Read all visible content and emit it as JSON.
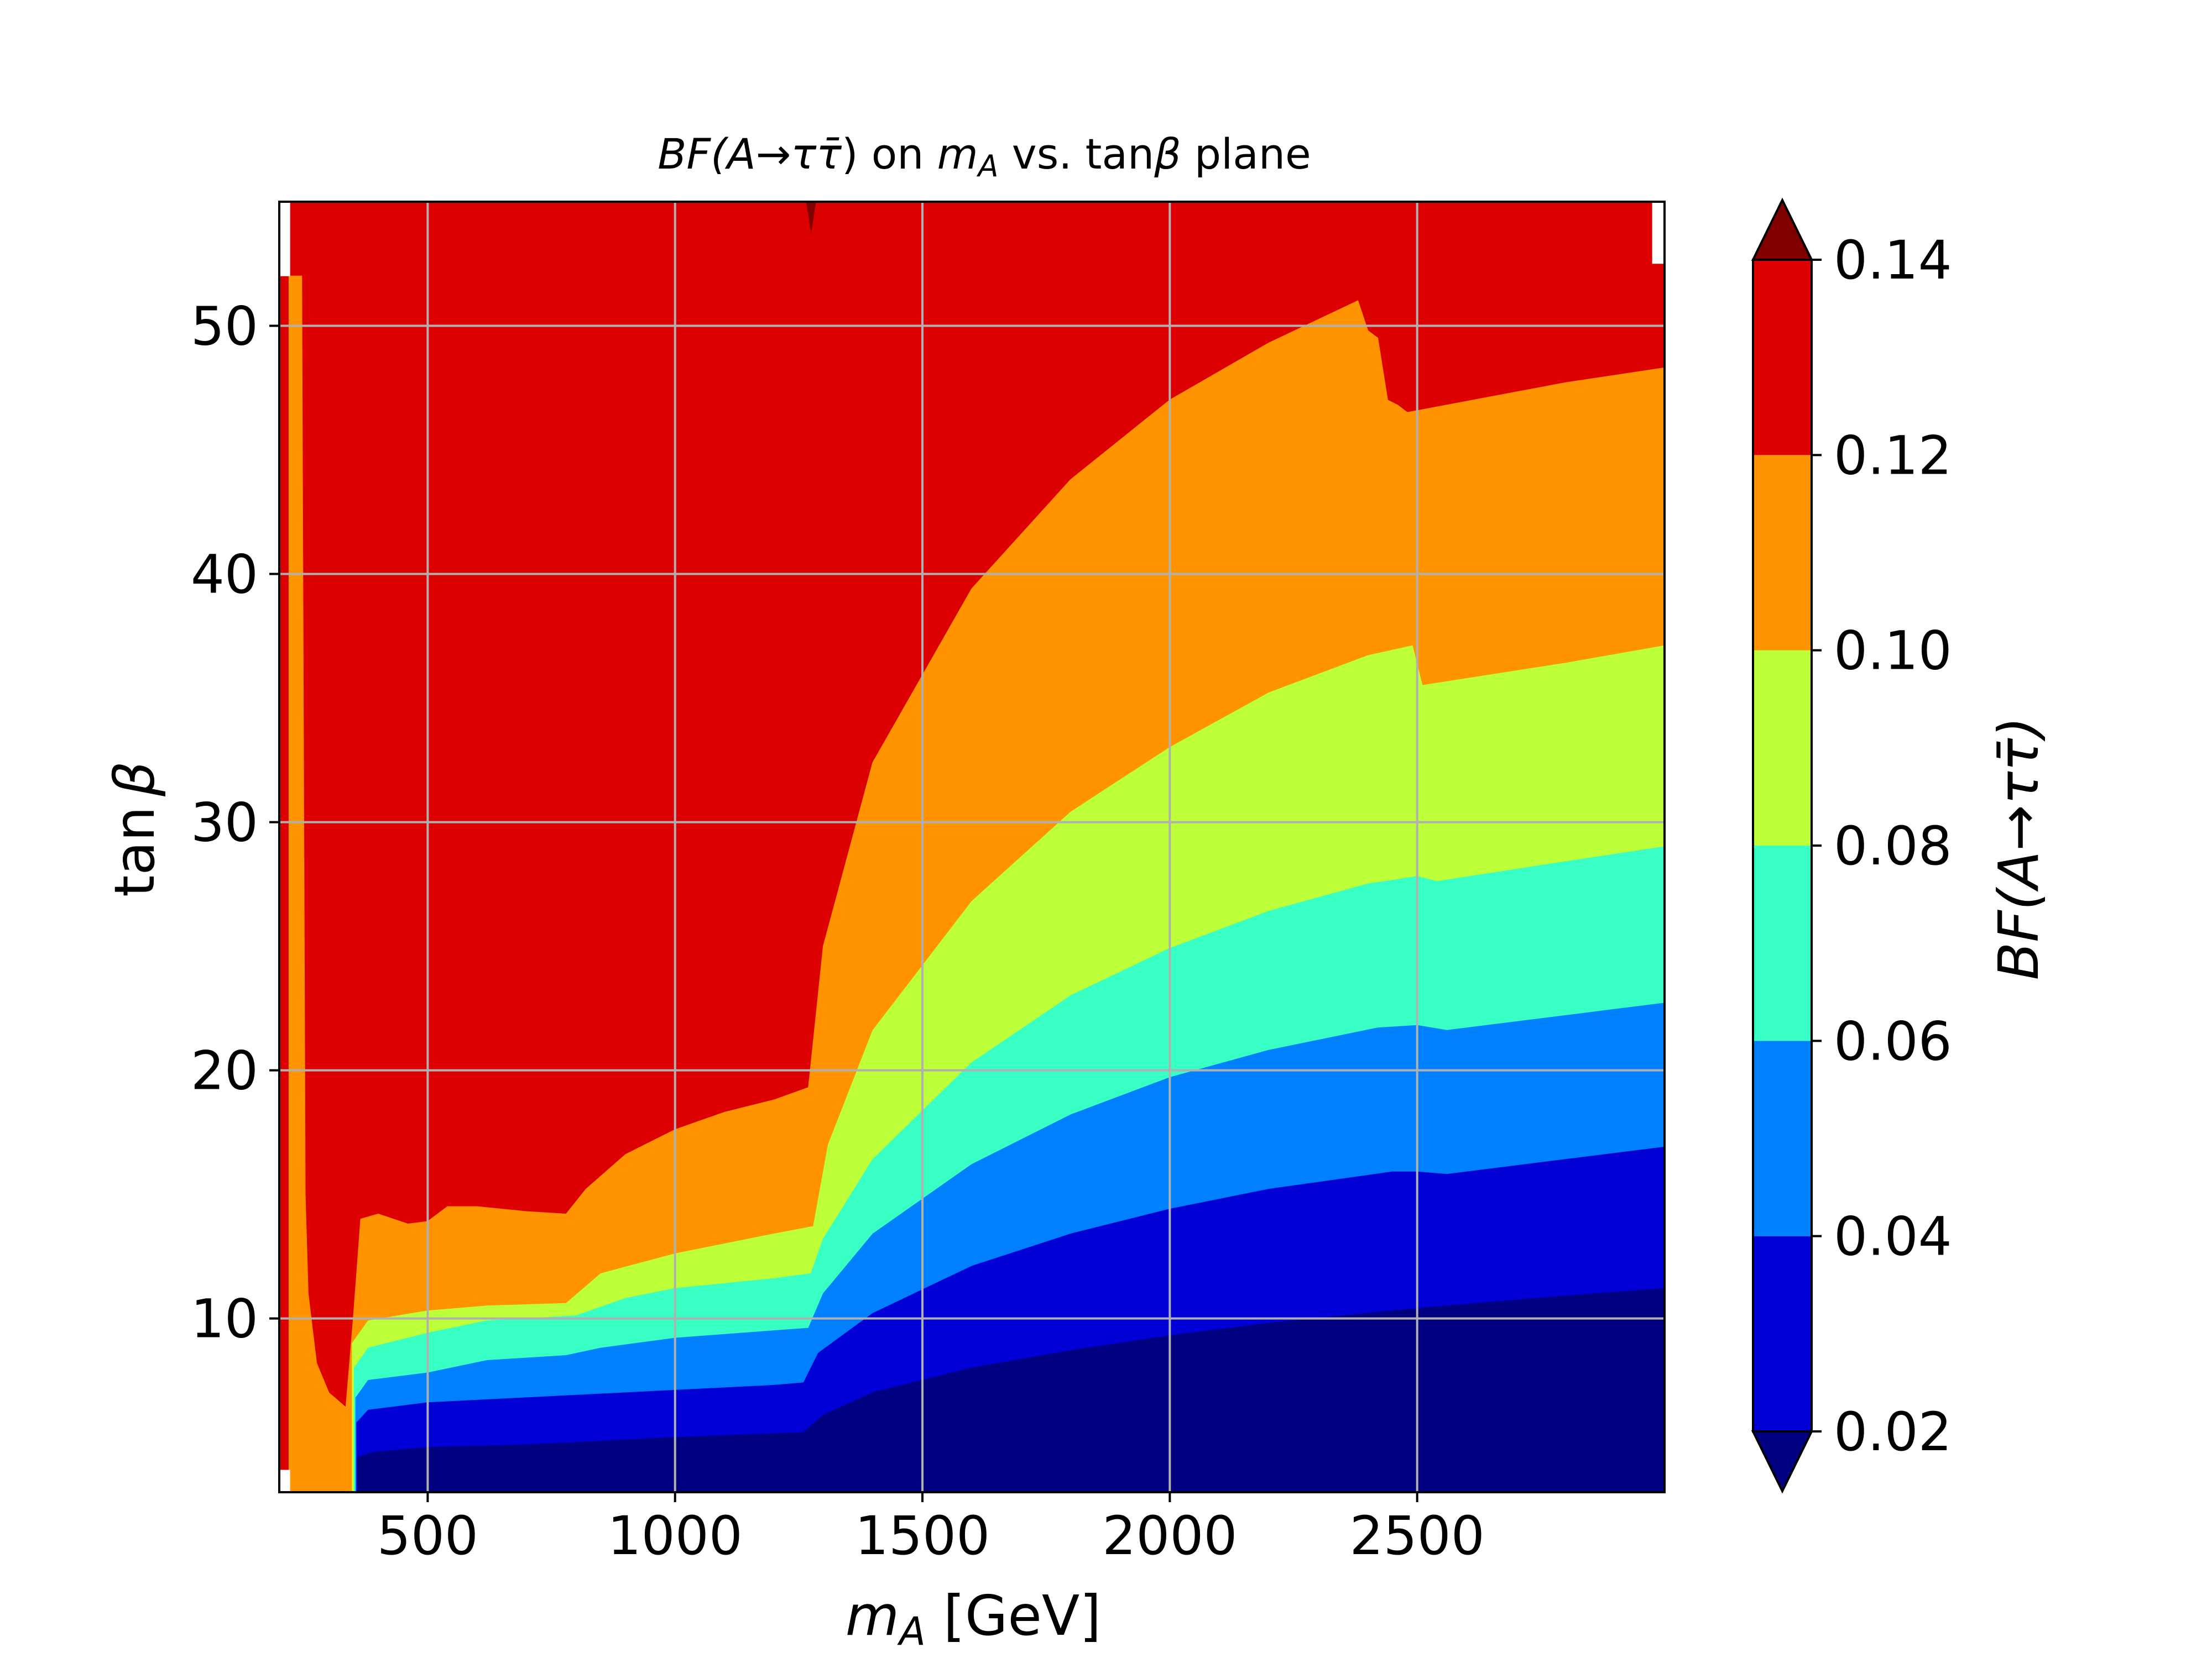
{
  "chart_data": {
    "type": "heatmap",
    "subtype": "filled-contour",
    "title": {
      "parts": [
        "BF(",
        "A",
        "→",
        "τ",
        "τ̄",
        ") on ",
        "m",
        "A",
        " vs. tan",
        "β",
        " plane"
      ]
    },
    "xlabel": {
      "base": "m",
      "sub": "A",
      "rest": " [GeV]"
    },
    "ylabel": {
      "text": "tan",
      "greek": "β"
    },
    "colorbar_label": "BF(A→ττ̄)",
    "xlim": [
      200,
      3000
    ],
    "ylim": [
      3,
      55
    ],
    "xticks": [
      500,
      1000,
      1500,
      2000,
      2500
    ],
    "xtick_labels": [
      "500",
      "1000",
      "1500",
      "2000",
      "2500"
    ],
    "yticks": [
      10,
      20,
      30,
      40,
      50
    ],
    "ytick_labels": [
      "10",
      "20",
      "30",
      "40",
      "50"
    ],
    "grid": true,
    "colorbar": {
      "levels": [
        0.02,
        0.04,
        0.06,
        0.08,
        0.1,
        0.12,
        0.14
      ],
      "tick_labels": [
        "0.02",
        "0.04",
        "0.06",
        "0.08",
        "0.10",
        "0.12",
        "0.14"
      ],
      "colors": [
        "#0000d6",
        "#0080ff",
        "#38ffc4",
        "#bdff38",
        "#ff9400",
        "#dc0000"
      ],
      "extend_low_color": "#000080",
      "extend_high_color": "#800000",
      "extend": "both"
    },
    "bands": [
      {
        "range": "<0.02",
        "color": "#000080",
        "lower": "bottom",
        "upper": [
          [
            359,
            4.4
          ],
          [
            390,
            4.6
          ],
          [
            500,
            4.8
          ],
          [
            600,
            4.85
          ],
          [
            700,
            4.9
          ],
          [
            800,
            5.0
          ],
          [
            1000,
            5.2
          ],
          [
            1200,
            5.35
          ],
          [
            1260,
            5.4
          ],
          [
            1300,
            6.1
          ],
          [
            1400,
            7.0
          ],
          [
            1600,
            8.0
          ],
          [
            1800,
            8.7
          ],
          [
            2000,
            9.3
          ],
          [
            2200,
            9.8
          ],
          [
            2500,
            10.4
          ],
          [
            2800,
            10.9
          ],
          [
            3000,
            11.2
          ]
        ]
      },
      {
        "range": "0.02–0.04",
        "color": "#0000d6",
        "lower": "prev",
        "upper": [
          [
            357,
            5.8
          ],
          [
            380,
            6.3
          ],
          [
            500,
            6.6
          ],
          [
            700,
            6.8
          ],
          [
            800,
            6.9
          ],
          [
            1000,
            7.1
          ],
          [
            1200,
            7.3
          ],
          [
            1260,
            7.4
          ],
          [
            1290,
            8.6
          ],
          [
            1400,
            10.2
          ],
          [
            1600,
            12.1
          ],
          [
            1800,
            13.4
          ],
          [
            2000,
            14.4
          ],
          [
            2200,
            15.2
          ],
          [
            2450,
            15.9
          ],
          [
            2500,
            15.9
          ],
          [
            2560,
            15.8
          ],
          [
            2800,
            16.4
          ],
          [
            3000,
            16.9
          ]
        ]
      },
      {
        "range": "0.04–0.06",
        "color": "#0080ff",
        "lower": "prev",
        "upper": [
          [
            355,
            6.8
          ],
          [
            380,
            7.5
          ],
          [
            500,
            7.8
          ],
          [
            620,
            8.3
          ],
          [
            780,
            8.5
          ],
          [
            850,
            8.8
          ],
          [
            1000,
            9.2
          ],
          [
            1200,
            9.5
          ],
          [
            1270,
            9.6
          ],
          [
            1300,
            11.0
          ],
          [
            1400,
            13.4
          ],
          [
            1600,
            16.2
          ],
          [
            1800,
            18.2
          ],
          [
            2000,
            19.7
          ],
          [
            2200,
            20.8
          ],
          [
            2420,
            21.7
          ],
          [
            2500,
            21.8
          ],
          [
            2560,
            21.6
          ],
          [
            2800,
            22.2
          ],
          [
            3000,
            22.7
          ]
        ]
      },
      {
        "range": "0.06–0.08",
        "color": "#38ffc4",
        "lower": "prev",
        "upper": [
          [
            352,
            8.0
          ],
          [
            380,
            8.8
          ],
          [
            500,
            9.4
          ],
          [
            620,
            9.9
          ],
          [
            800,
            10.1
          ],
          [
            900,
            10.8
          ],
          [
            1000,
            11.2
          ],
          [
            1200,
            11.6
          ],
          [
            1275,
            11.8
          ],
          [
            1300,
            13.2
          ],
          [
            1400,
            16.4
          ],
          [
            1600,
            20.3
          ],
          [
            1800,
            23.0
          ],
          [
            2000,
            24.9
          ],
          [
            2200,
            26.4
          ],
          [
            2400,
            27.5
          ],
          [
            2500,
            27.8
          ],
          [
            2540,
            27.6
          ],
          [
            2800,
            28.4
          ],
          [
            3000,
            29.0
          ]
        ]
      },
      {
        "range": "0.08–0.10",
        "color": "#bdff38",
        "lower": "prev",
        "upper": [
          [
            348,
            9.0
          ],
          [
            380,
            9.9
          ],
          [
            500,
            10.3
          ],
          [
            620,
            10.5
          ],
          [
            780,
            10.6
          ],
          [
            850,
            11.8
          ],
          [
            1000,
            12.6
          ],
          [
            1200,
            13.4
          ],
          [
            1280,
            13.7
          ],
          [
            1310,
            17.0
          ],
          [
            1400,
            21.6
          ],
          [
            1600,
            26.8
          ],
          [
            1800,
            30.4
          ],
          [
            2000,
            33.0
          ],
          [
            2200,
            35.2
          ],
          [
            2400,
            36.7
          ],
          [
            2490,
            37.1
          ],
          [
            2510,
            35.5
          ],
          [
            2800,
            36.4
          ],
          [
            3000,
            37.1
          ]
        ]
      },
      {
        "range": "0.10–0.12",
        "color": "#ff9400",
        "lower": "prev",
        "upper": [
          [
            220,
            52.0
          ],
          [
            245,
            52.0
          ],
          [
            252,
            15.0
          ],
          [
            258,
            11.0
          ],
          [
            275,
            8.2
          ],
          [
            300,
            7.0
          ],
          [
            335,
            6.4
          ],
          [
            350,
            10.0
          ],
          [
            365,
            14.0
          ],
          [
            400,
            14.2
          ],
          [
            460,
            13.8
          ],
          [
            500,
            13.9
          ],
          [
            540,
            14.5
          ],
          [
            600,
            14.5
          ],
          [
            700,
            14.3
          ],
          [
            780,
            14.2
          ],
          [
            820,
            15.2
          ],
          [
            900,
            16.6
          ],
          [
            1000,
            17.6
          ],
          [
            1100,
            18.3
          ],
          [
            1200,
            18.8
          ],
          [
            1270,
            19.3
          ],
          [
            1300,
            25.0
          ],
          [
            1400,
            32.4
          ],
          [
            1600,
            39.4
          ],
          [
            1800,
            43.8
          ],
          [
            2000,
            47.0
          ],
          [
            2200,
            49.3
          ],
          [
            2380,
            51.0
          ],
          [
            2400,
            49.8
          ],
          [
            2420,
            49.5
          ],
          [
            2440,
            47.0
          ],
          [
            2460,
            46.8
          ],
          [
            2480,
            46.5
          ],
          [
            2800,
            47.7
          ],
          [
            3000,
            48.3
          ]
        ]
      },
      {
        "range": "0.12–0.14",
        "color": "#dc0000",
        "lower": "prev",
        "upper": "top"
      }
    ]
  }
}
